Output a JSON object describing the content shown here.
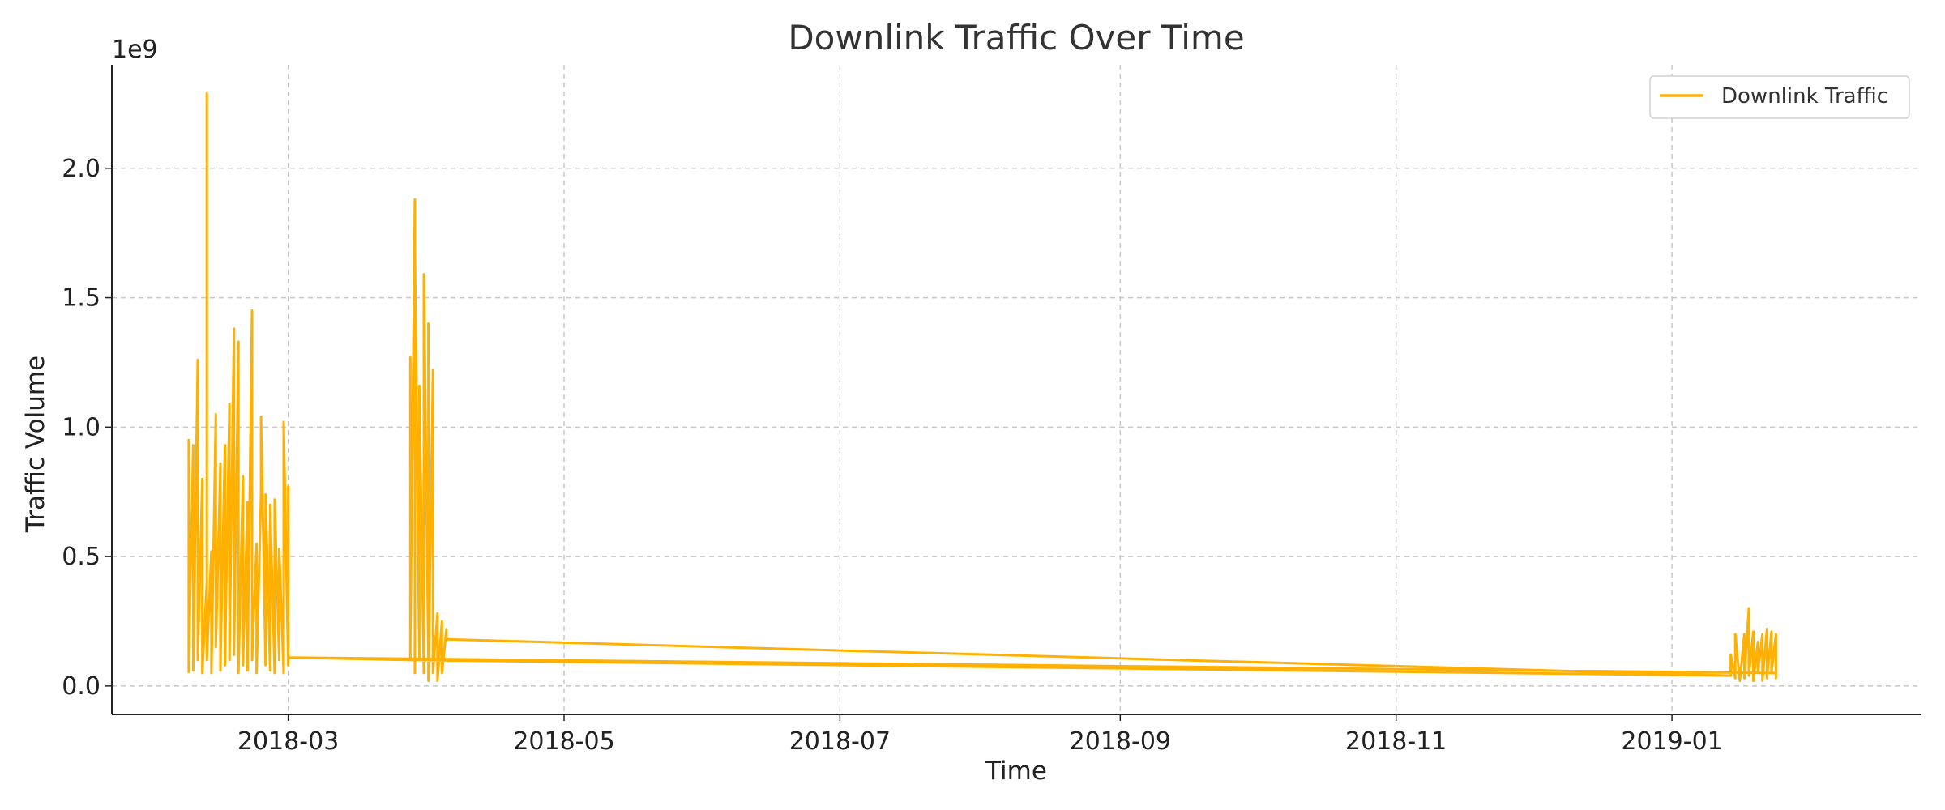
{
  "chart_data": {
    "type": "line",
    "title": "Downlink Traffic Over Time",
    "xlabel": "Time",
    "ylabel": "Traffic Volume",
    "y_scale_label": "1e9",
    "x_ticks": [
      "2018-03",
      "2018-05",
      "2018-07",
      "2018-09",
      "2018-11",
      "2019-01"
    ],
    "y_ticks": [
      "0.0",
      "0.5",
      "1.0",
      "1.5",
      "2.0"
    ],
    "xlim": [
      "2018-01-21",
      "2019-02-25"
    ],
    "ylim": [
      -0.11,
      2.4
    ],
    "grid": true,
    "legend": {
      "position": "top-right"
    },
    "colors": {
      "line": "#FFB000"
    },
    "series": [
      {
        "name": "Downlink Traffic",
        "points": [
          [
            "2018-02-07",
            0.05
          ],
          [
            "2018-02-07",
            0.95
          ],
          [
            "2018-02-07",
            0.1
          ],
          [
            "2018-02-08",
            0.93
          ],
          [
            "2018-02-08",
            0.06
          ],
          [
            "2018-02-09",
            1.26
          ],
          [
            "2018-02-09",
            0.1
          ],
          [
            "2018-02-10",
            0.8
          ],
          [
            "2018-02-10",
            0.05
          ],
          [
            "2018-02-11",
            0.4
          ],
          [
            "2018-02-11",
            2.29
          ],
          [
            "2018-02-11",
            0.1
          ],
          [
            "2018-02-12",
            0.52
          ],
          [
            "2018-02-12",
            0.05
          ],
          [
            "2018-02-13",
            1.05
          ],
          [
            "2018-02-13",
            0.15
          ],
          [
            "2018-02-14",
            0.86
          ],
          [
            "2018-02-14",
            0.06
          ],
          [
            "2018-02-15",
            0.93
          ],
          [
            "2018-02-15",
            0.08
          ],
          [
            "2018-02-16",
            1.09
          ],
          [
            "2018-02-16",
            0.1
          ],
          [
            "2018-02-17",
            1.38
          ],
          [
            "2018-02-17",
            0.12
          ],
          [
            "2018-02-18",
            1.33
          ],
          [
            "2018-02-18",
            0.05
          ],
          [
            "2018-02-19",
            0.81
          ],
          [
            "2018-02-19",
            0.08
          ],
          [
            "2018-02-20",
            0.71
          ],
          [
            "2018-02-20",
            0.06
          ],
          [
            "2018-02-21",
            1.45
          ],
          [
            "2018-02-21",
            0.1
          ],
          [
            "2018-02-22",
            0.55
          ],
          [
            "2018-02-22",
            0.05
          ],
          [
            "2018-02-23",
            0.75
          ],
          [
            "2018-02-23",
            1.04
          ],
          [
            "2018-02-24",
            0.08
          ],
          [
            "2018-02-24",
            0.74
          ],
          [
            "2018-02-25",
            0.06
          ],
          [
            "2018-02-25",
            0.7
          ],
          [
            "2018-02-26",
            0.05
          ],
          [
            "2018-02-26",
            0.72
          ],
          [
            "2018-02-27",
            0.1
          ],
          [
            "2018-02-27",
            0.53
          ],
          [
            "2018-02-28",
            0.05
          ],
          [
            "2018-02-28",
            1.02
          ],
          [
            "2018-03-01",
            0.08
          ],
          [
            "2018-03-01",
            0.77
          ],
          [
            "2018-03-01",
            0.11
          ],
          [
            "2018-03-28",
            0.1
          ],
          [
            "2018-03-28",
            0.25
          ],
          [
            "2018-03-28",
            1.27
          ],
          [
            "2018-03-28",
            0.15
          ],
          [
            "2018-03-29",
            1.88
          ],
          [
            "2018-03-29",
            0.05
          ],
          [
            "2018-03-29",
            1.7
          ],
          [
            "2018-03-30",
            0.1
          ],
          [
            "2018-03-30",
            1.16
          ],
          [
            "2018-03-31",
            0.05
          ],
          [
            "2018-03-31",
            1.59
          ],
          [
            "2018-04-01",
            0.1
          ],
          [
            "2018-04-01",
            1.4
          ],
          [
            "2018-04-01",
            0.02
          ],
          [
            "2018-04-02",
            1.22
          ],
          [
            "2018-04-02",
            0.05
          ],
          [
            "2018-04-03",
            0.28
          ],
          [
            "2018-04-03",
            0.02
          ],
          [
            "2018-04-04",
            0.25
          ],
          [
            "2018-04-04",
            0.05
          ],
          [
            "2018-04-05",
            0.22
          ],
          [
            "2018-04-05",
            0.18
          ],
          [
            "2019-01-14",
            0.04
          ],
          [
            "2019-01-14",
            0.12
          ],
          [
            "2019-01-15",
            0.03
          ],
          [
            "2019-01-15",
            0.2
          ],
          [
            "2019-01-16",
            0.02
          ],
          [
            "2019-01-17",
            0.2
          ],
          [
            "2019-01-17",
            0.03
          ],
          [
            "2019-01-18",
            0.3
          ],
          [
            "2019-01-18",
            0.04
          ],
          [
            "2019-01-19",
            0.21
          ],
          [
            "2019-01-19",
            0.02
          ],
          [
            "2019-01-20",
            0.17
          ],
          [
            "2019-01-20",
            0.05
          ],
          [
            "2019-01-21",
            0.2
          ],
          [
            "2019-01-21",
            0.02
          ],
          [
            "2019-01-22",
            0.22
          ],
          [
            "2019-01-22",
            0.03
          ],
          [
            "2019-01-23",
            0.21
          ],
          [
            "2019-01-23",
            0.05
          ],
          [
            "2019-01-24",
            0.2
          ],
          [
            "2019-01-24",
            0.03
          ],
          [
            "2019-01-24",
            0.05
          ],
          [
            "2018-03-01",
            0.11
          ],
          [
            "2018-03-28",
            0.1
          ],
          [
            "2019-01-14",
            0.04
          ],
          [
            "2018-04-05",
            0.18
          ]
        ]
      }
    ]
  }
}
